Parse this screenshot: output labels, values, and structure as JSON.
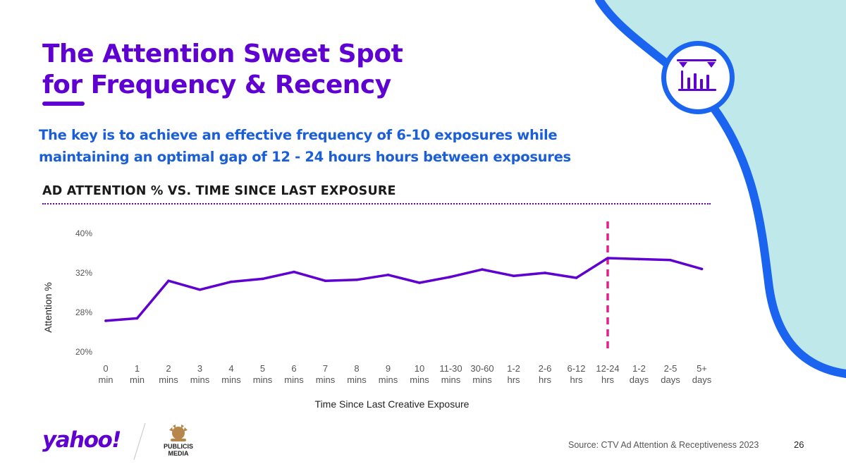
{
  "slide": {
    "title_line1": "The Attention Sweet Spot",
    "title_line2": "for Frequency & Recency",
    "subtitle_line1": "The key is to achieve an effective frequency of 6-10 exposures while",
    "subtitle_line2": "maintaining an optimal gap of 12 - 24  hours hours between exposures",
    "chart_heading": "AD ATTENTION % VS. TIME SINCE LAST EXPOSURE",
    "source": "Source: CTV Ad Attention & Receptiveness 2023",
    "page_number": "26",
    "badge_icon": "bar-chart-with-markers-icon"
  },
  "logos": {
    "yahoo": "yahoo!",
    "publicis_line1": "PUBLICIS",
    "publicis_line2": "MEDIA"
  },
  "colors": {
    "brand_purple": "#5f01d1",
    "subtitle_blue": "#1a5fd8",
    "highlight_magenta": "#e0218a",
    "accent_teal": "#bfe8ea",
    "accent_blue": "#1a64f0"
  },
  "chart_data": {
    "type": "line",
    "title": "AD ATTENTION % VS. TIME SINCE LAST EXPOSURE",
    "xlabel": "Time Since Last Creative Exposure",
    "ylabel": "Attention %",
    "y_ticks": [
      "20%",
      "28%",
      "32%",
      "40%"
    ],
    "categories": [
      [
        "0",
        "min"
      ],
      [
        "1",
        "min"
      ],
      [
        "2",
        "mins"
      ],
      [
        "3",
        "mins"
      ],
      [
        "4",
        "mins"
      ],
      [
        "5",
        "mins"
      ],
      [
        "6",
        "mins"
      ],
      [
        "7",
        "mins"
      ],
      [
        "8",
        "mins"
      ],
      [
        "9",
        "mins"
      ],
      [
        "10",
        "mins"
      ],
      [
        "11-30",
        "mins"
      ],
      [
        "30-60",
        "mins"
      ],
      [
        "1-2",
        "hrs"
      ],
      [
        "2-6",
        "hrs"
      ],
      [
        "6-12",
        "hrs"
      ],
      [
        "12-24",
        "hrs"
      ],
      [
        "1-2",
        "days"
      ],
      [
        "2-5",
        "days"
      ],
      [
        "5+",
        "days"
      ]
    ],
    "series": [
      {
        "values": [
          26.3,
          26.8,
          31.2,
          30.3,
          31.1,
          31.4,
          32.2,
          31.2,
          31.3,
          31.8,
          31.0,
          31.6,
          32.7,
          31.7,
          32.0,
          31.5,
          35.0,
          34.8,
          34.6,
          32.8
        ]
      }
    ],
    "highlight_category_index": 16,
    "highlight_style": "dashed vertical line",
    "grid": false,
    "legend": "none"
  }
}
